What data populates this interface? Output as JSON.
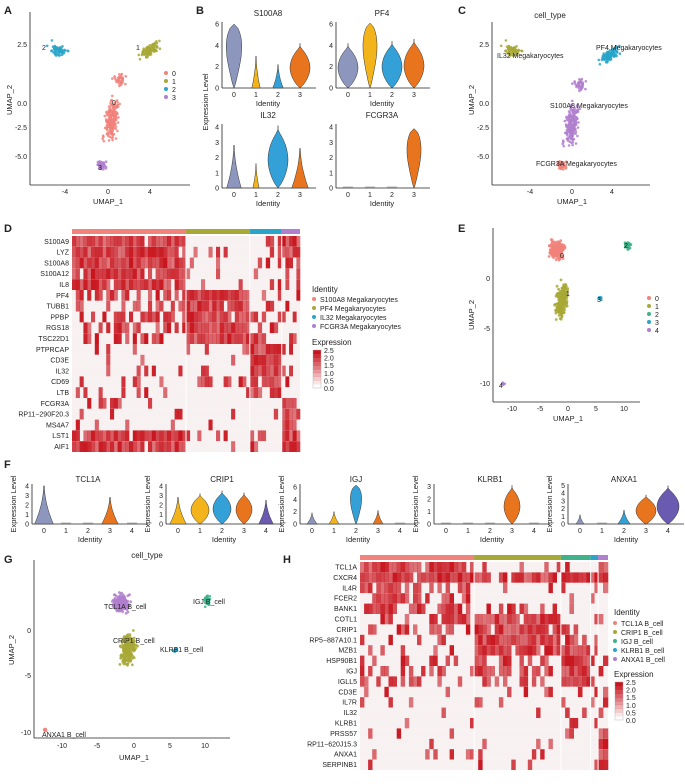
{
  "panel_letters": [
    "A",
    "B",
    "C",
    "D",
    "E",
    "F",
    "G",
    "H"
  ],
  "colors": {
    "c0": "#f1837b",
    "c1": "#a8a836",
    "c2": "#3fb28a",
    "c3": "#2aa5c9",
    "c4": "#b07fce",
    "v0": "#8d96bd",
    "v1": "#f2b41a",
    "v2": "#34a0d8",
    "v3": "#e8751e",
    "v4": "#6b5bb0",
    "heat_high": "#c8151e",
    "heat_low": "#ffffff"
  },
  "panelA": {
    "xlabel": "UMAP_1",
    "ylabel": "UMAP_2",
    "legend": [
      "0",
      "1",
      "2",
      "3"
    ],
    "cluster_labels": [
      "2",
      "1",
      "0",
      "3"
    ]
  },
  "panelB": {
    "ylabel": "Expression Level",
    "xlabel": "Identity",
    "genes": [
      "S100A8",
      "PF4",
      "IL32",
      "FCGR3A"
    ],
    "ticks": [
      "0",
      "1",
      "2",
      "3"
    ]
  },
  "panelC": {
    "title": "cell_type",
    "xlabel": "UMAP_1",
    "ylabel": "UMAP_2",
    "labels": [
      "IL32 Megakaryocytes",
      "PF4 Megakaryocytes",
      "S100A8 Megakaryocytes",
      "FCGR3A Megakaryocytes"
    ]
  },
  "panelD": {
    "genes": [
      "S100A9",
      "LYZ",
      "S100A8",
      "S100A12",
      "IL8",
      "PF4",
      "TUBB1",
      "PPBP",
      "RGS18",
      "TSC22D1",
      "PTPRCAP",
      "CD3E",
      "IL32",
      "CD69",
      "LTB",
      "FCGR3A",
      "RP11−290F20.3",
      "MS4A7",
      "LST1",
      "AIF1"
    ],
    "legend_title": "Identity",
    "legend": [
      "S100A8 Megakaryocytes",
      "PF4 Megakaryocytes",
      "IL32 Megakaryocytes",
      "FCGR3A Megakaryocytes"
    ],
    "expression_title": "Expression",
    "expression_ticks": [
      "2.5",
      "2.0",
      "1.5",
      "1.0",
      "0.5",
      "0.0"
    ]
  },
  "panelE": {
    "xlabel": "UMAP_1",
    "ylabel": "UMAP_2",
    "legend": [
      "0",
      "1",
      "2",
      "3",
      "4"
    ],
    "cluster_labels": [
      "0",
      "2",
      "1",
      "3",
      "4"
    ]
  },
  "panelF": {
    "ylabel": "Expression Level",
    "xlabel": "Identity",
    "genes": [
      "TCL1A",
      "CRIP1",
      "IGJ",
      "KLRB1",
      "ANXA1"
    ],
    "ticks": [
      "0",
      "1",
      "2",
      "3",
      "4"
    ]
  },
  "panelG": {
    "title": "cell_type",
    "xlabel": "UMAP_1",
    "ylabel": "UMAP_2",
    "labels": [
      "TCL1A B_cell",
      "IGJ B_cell",
      "CRIP1 B_cell",
      "KLRB1 B_cell",
      "ANXA1 B_cell"
    ]
  },
  "panelH": {
    "genes": [
      "TCL1A",
      "CXCR4",
      "IL4R",
      "FCER2",
      "BANK1",
      "COTL1",
      "CRIP1",
      "RP5−887A10.1",
      "MZB1",
      "HSP90B1",
      "IGJ",
      "IGLL5",
      "CD3E",
      "IL7R",
      "IL32",
      "KLRB1",
      "PRSS57",
      "RP11−620J15.3",
      "ANXA1",
      "SERPINB1"
    ],
    "legend_title": "Identity",
    "legend": [
      "TCL1A B_cell",
      "CRIP1 B_cell",
      "IGJ B_cell",
      "KLRB1 B_cell",
      "ANXA1 B_cell"
    ],
    "expression_title": "Expression",
    "expression_ticks": [
      "2.5",
      "2.0",
      "1.5",
      "1.0",
      "0.5",
      "0.0"
    ]
  },
  "chart_data": [
    {
      "type": "scatter",
      "panel": "A",
      "xlabel": "UMAP_1",
      "ylabel": "UMAP_2",
      "xlim": [
        -7,
        6.5
      ],
      "ylim": [
        -7,
        4
      ],
      "x_ticks": [
        -4,
        0,
        4
      ],
      "y_ticks": [
        2.5,
        0.0,
        -2.5,
        -5.0
      ],
      "series": [
        {
          "name": "0",
          "center": [
            -0.2,
            -2.0
          ]
        },
        {
          "name": "1",
          "center": [
            3.0,
            1.5
          ]
        },
        {
          "name": "2",
          "center": [
            -4.2,
            2.5
          ]
        },
        {
          "name": "3",
          "center": [
            -0.5,
            -5.6
          ]
        }
      ]
    },
    {
      "type": "violin",
      "panel": "B",
      "plots": [
        {
          "gene": "S100A8",
          "y_ticks": [
            0,
            2,
            4,
            6
          ],
          "ylim": [
            0,
            6.2
          ],
          "medians": [
            4.5,
            0.6,
            0.5,
            1.8
          ]
        },
        {
          "gene": "PF4",
          "y_ticks": [
            0,
            2,
            4,
            6
          ],
          "ylim": [
            0,
            6.2
          ],
          "medians": [
            2.2,
            5.6,
            2.2,
            1.8
          ]
        },
        {
          "gene": "IL32",
          "y_ticks": [
            0,
            1,
            2,
            3,
            4
          ],
          "ylim": [
            0,
            4.2
          ],
          "medians": [
            0.1,
            0.1,
            2.0,
            0.4
          ]
        },
        {
          "gene": "FCGR3A",
          "y_ticks": [
            0,
            1,
            2,
            3,
            4
          ],
          "ylim": [
            0,
            4.2
          ],
          "medians": [
            0,
            0,
            0,
            3.0
          ]
        }
      ]
    },
    {
      "type": "scatter",
      "panel": "C",
      "xlabel": "UMAP_1",
      "ylabel": "UMAP_2",
      "xlim": [
        -7,
        6.5
      ],
      "ylim": [
        -7,
        4
      ],
      "x_ticks": [
        -4,
        0,
        4
      ],
      "y_ticks": [
        2.5,
        0.0,
        -2.5,
        -5.0
      ]
    },
    {
      "type": "heatmap",
      "panel": "D",
      "groups": [
        "S100A8 Megakaryocytes",
        "PF4 Megakaryocytes",
        "IL32 Megakaryocytes",
        "FCGR3A Megakaryocytes"
      ],
      "group_fraction": [
        0.5,
        0.28,
        0.14,
        0.08
      ],
      "color_range": [
        0,
        2.5
      ]
    },
    {
      "type": "scatter",
      "panel": "E",
      "xlabel": "UMAP_1",
      "ylabel": "UMAP_2",
      "xlim": [
        -14,
        13
      ],
      "ylim": [
        -11.5,
        6
      ],
      "x_ticks": [
        -10,
        -5,
        0,
        5,
        10
      ],
      "y_ticks": [
        0,
        -5,
        -10
      ],
      "series": [
        {
          "name": "0",
          "center": [
            -1,
            2.5
          ]
        },
        {
          "name": "1",
          "center": [
            -1,
            -1.5
          ]
        },
        {
          "name": "2",
          "center": [
            10.5,
            2.5
          ]
        },
        {
          "name": "3",
          "center": [
            5.5,
            -2.2
          ]
        },
        {
          "name": "4",
          "center": [
            -12.5,
            -10.3
          ]
        }
      ]
    },
    {
      "type": "violin",
      "panel": "F",
      "plots": [
        {
          "gene": "TCL1A",
          "y_ticks": [
            0,
            1,
            2,
            3,
            4
          ],
          "ylim": [
            0,
            4.2
          ]
        },
        {
          "gene": "CRIP1",
          "y_ticks": [
            0,
            1,
            2,
            3,
            4
          ],
          "ylim": [
            0,
            4.2
          ]
        },
        {
          "gene": "IGJ",
          "y_ticks": [
            0,
            2,
            4,
            6
          ],
          "ylim": [
            0,
            6.5
          ]
        },
        {
          "gene": "KLRB1",
          "y_ticks": [
            0,
            1,
            2,
            3
          ],
          "ylim": [
            0,
            3.2
          ]
        },
        {
          "gene": "ANXA1",
          "y_ticks": [
            0,
            1,
            2,
            3,
            4,
            5
          ],
          "ylim": [
            0,
            5.2
          ]
        }
      ]
    },
    {
      "type": "scatter",
      "panel": "G",
      "xlabel": "UMAP_1",
      "ylabel": "UMAP_2",
      "xlim": [
        -14,
        13
      ],
      "ylim": [
        -11.5,
        6
      ],
      "x_ticks": [
        -10,
        -5,
        0,
        5,
        10
      ],
      "y_ticks": [
        0,
        -5,
        -10
      ]
    },
    {
      "type": "heatmap",
      "panel": "H",
      "groups": [
        "TCL1A B_cell",
        "CRIP1 B_cell",
        "IGJ B_cell",
        "KLRB1 B_cell",
        "ANXA1 B_cell"
      ],
      "group_fraction": [
        0.46,
        0.35,
        0.12,
        0.03,
        0.04
      ],
      "color_range": [
        0,
        2.5
      ]
    }
  ]
}
